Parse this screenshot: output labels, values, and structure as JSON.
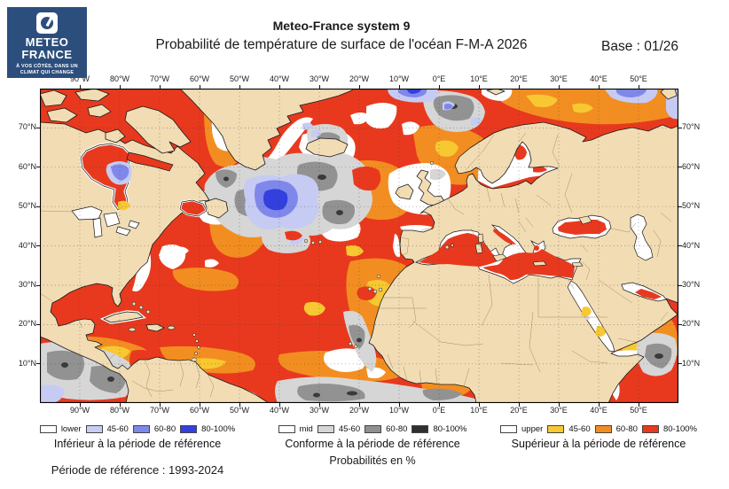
{
  "logo": {
    "brand_line1": "METEO",
    "brand_line2": "FRANCE",
    "tagline_line1": "À VOS CÔTÉS, DANS UN",
    "tagline_line2": "CLIMAT QUI CHANGE",
    "bg_color": "#2c4e7d"
  },
  "header": {
    "title": "Meteo-France system 9",
    "subtitle": "Probabilité de température de surface de l'océan F-M-A 2026",
    "base_label": "Base : 01/26"
  },
  "map": {
    "lon_labels": [
      "90°W",
      "80°W",
      "70°W",
      "60°W",
      "50°W",
      "40°W",
      "30°W",
      "20°W",
      "10°W",
      "0°E",
      "10°E",
      "20°E",
      "30°E",
      "40°E",
      "50°E"
    ],
    "lat_labels": [
      "70°N",
      "60°N",
      "50°N",
      "40°N",
      "30°N",
      "20°N",
      "10°N"
    ],
    "land_color": "#f2dcb4",
    "ocean_base_color": "#e8391e",
    "frame_color": "#000000"
  },
  "legend": {
    "lower": {
      "title": "Inférieur à la période de référence",
      "items": [
        {
          "label": "lower",
          "color": "#ffffff"
        },
        {
          "label": "45-60",
          "color": "#c9cdf2"
        },
        {
          "label": "60-80",
          "color": "#7f88e8"
        },
        {
          "label": "80-100%",
          "color": "#3340df"
        }
      ]
    },
    "mid": {
      "title": "Conforme à la période de référence",
      "subtitle": "Probabilités en %",
      "items": [
        {
          "label": "mid",
          "color": "#ffffff"
        },
        {
          "label": "45-60",
          "color": "#d6d6d6"
        },
        {
          "label": "60-80",
          "color": "#909090"
        },
        {
          "label": "80-100%",
          "color": "#2f2f2f"
        }
      ]
    },
    "upper": {
      "title": "Supérieur à la période de référence",
      "items": [
        {
          "label": "upper",
          "color": "#ffffff"
        },
        {
          "label": "45-60",
          "color": "#f7c832"
        },
        {
          "label": "60-80",
          "color": "#f28e21"
        },
        {
          "label": "80-100%",
          "color": "#e8391e"
        }
      ]
    }
  },
  "footer": {
    "reference_period_label": "Période de référence : 1993-2024"
  }
}
